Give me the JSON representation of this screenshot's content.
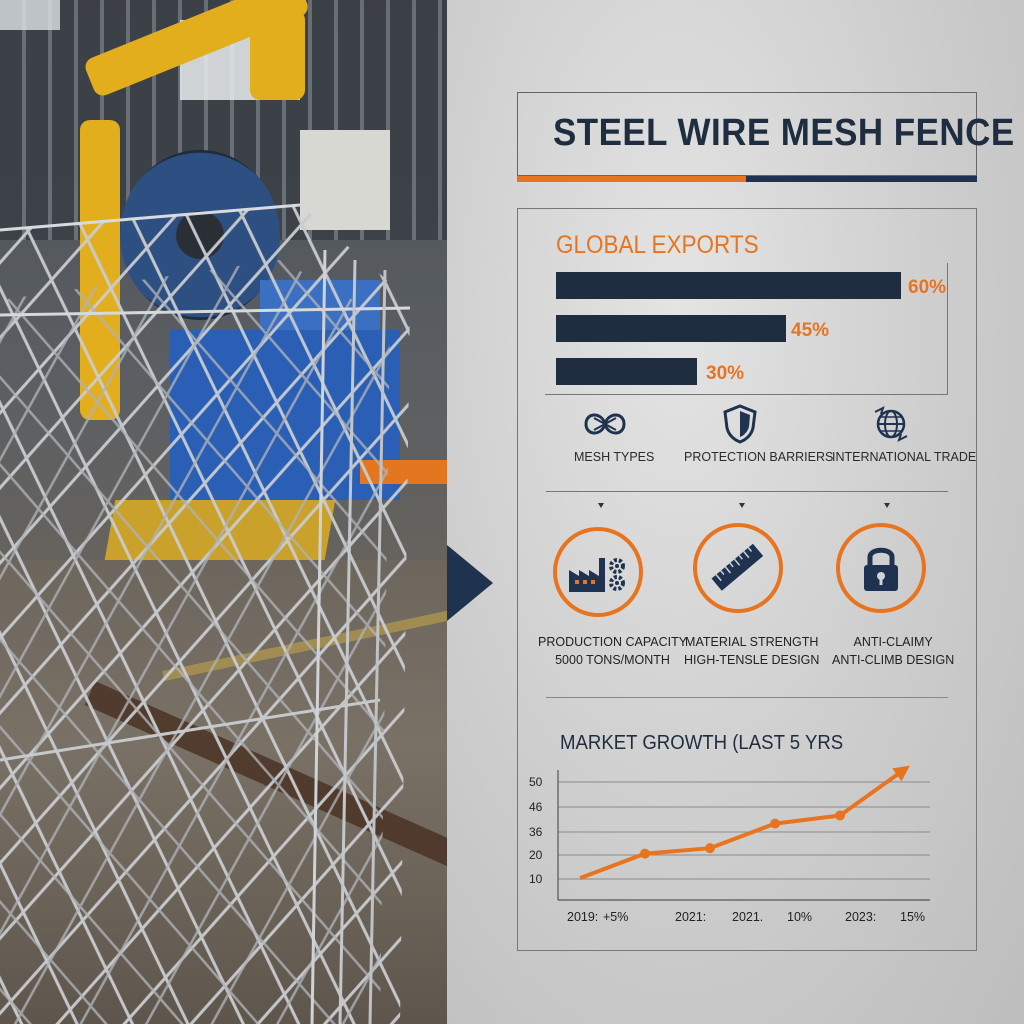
{
  "title": "STEEL WIRE MESH FENCE",
  "exports": {
    "heading": "GLOBAL EXPORTS",
    "bars": [
      {
        "label": "60%",
        "value": 60
      },
      {
        "label": "45%",
        "value": 45
      },
      {
        "label": "30%",
        "value": 30
      }
    ]
  },
  "features": [
    {
      "label": "MESH TYPES",
      "icon": "link-knot-icon"
    },
    {
      "label": "PROTECTION BARRIERS",
      "icon": "shield-icon"
    },
    {
      "label": "INTERNATIONAL TRADE",
      "icon": "globe-icon"
    }
  ],
  "stats": [
    {
      "line1": "PRODUCTION CAPACITY",
      "line2": "5000 TONS/MONTH",
      "icon": "factory-gears-icon"
    },
    {
      "line1": "MATERIAL STRENGTH",
      "line2": "HIGH-TENSLE DESIGN",
      "icon": "ruler-icon"
    },
    {
      "line1": "ANTI-CLAIMY",
      "line2": "ANTI-CLIMB DESIGN",
      "icon": "padlock-icon"
    }
  ],
  "colors": {
    "orange": "#e8741f",
    "navy": "#1f3350"
  },
  "chart_data": {
    "type": "line",
    "title": "MARKET GROWTH (LAST 5 YRS",
    "y_ticks": [
      "50",
      "46",
      "36",
      "20",
      "10"
    ],
    "x_tick_labels": [
      "2019:",
      "+5%",
      "2021:",
      "2021.",
      "10%",
      "2023:",
      "15%"
    ],
    "series": [
      {
        "values": [
          8,
          17,
          19,
          28,
          31,
          48
        ]
      }
    ],
    "ylim": [
      0,
      55
    ],
    "grid": true
  }
}
